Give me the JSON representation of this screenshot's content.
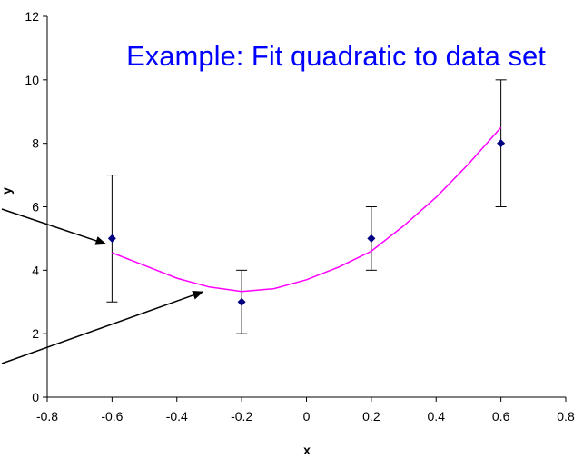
{
  "chart_data": {
    "type": "scatter",
    "title": "Example: Fit quadratic to data set",
    "xlabel": "x",
    "ylabel": "y",
    "xlim": [
      -0.8,
      0.8
    ],
    "ylim": [
      0,
      12
    ],
    "x_ticks": [
      "-0.8",
      "-0.6",
      "-0.4",
      "-0.2",
      "0",
      "0.2",
      "0.4",
      "0.6",
      "0.8"
    ],
    "y_ticks": [
      "0",
      "2",
      "4",
      "6",
      "8",
      "10",
      "12"
    ],
    "grid": false,
    "series": [
      {
        "kind": "points_with_error_bars",
        "x": [
          -0.6,
          -0.2,
          0.2,
          0.6
        ],
        "y": [
          5,
          3,
          5,
          8
        ],
        "y_error": [
          2,
          1,
          1,
          2
        ]
      },
      {
        "kind": "fit_curve",
        "x": [
          -0.6,
          -0.5,
          -0.4,
          -0.3,
          -0.2,
          -0.1,
          0.0,
          0.1,
          0.2,
          0.3,
          0.4,
          0.5,
          0.6
        ],
        "y": [
          4.55,
          4.15,
          3.75,
          3.47,
          3.33,
          3.42,
          3.7,
          4.1,
          4.6,
          5.4,
          6.3,
          7.35,
          8.5
        ]
      }
    ],
    "annotation_arrows": 2,
    "colors": {
      "title": "#0000ff",
      "points": "#000080",
      "fit_curve": "#ff00ff",
      "error_bars": "#000000",
      "arrows": "#000000"
    }
  }
}
